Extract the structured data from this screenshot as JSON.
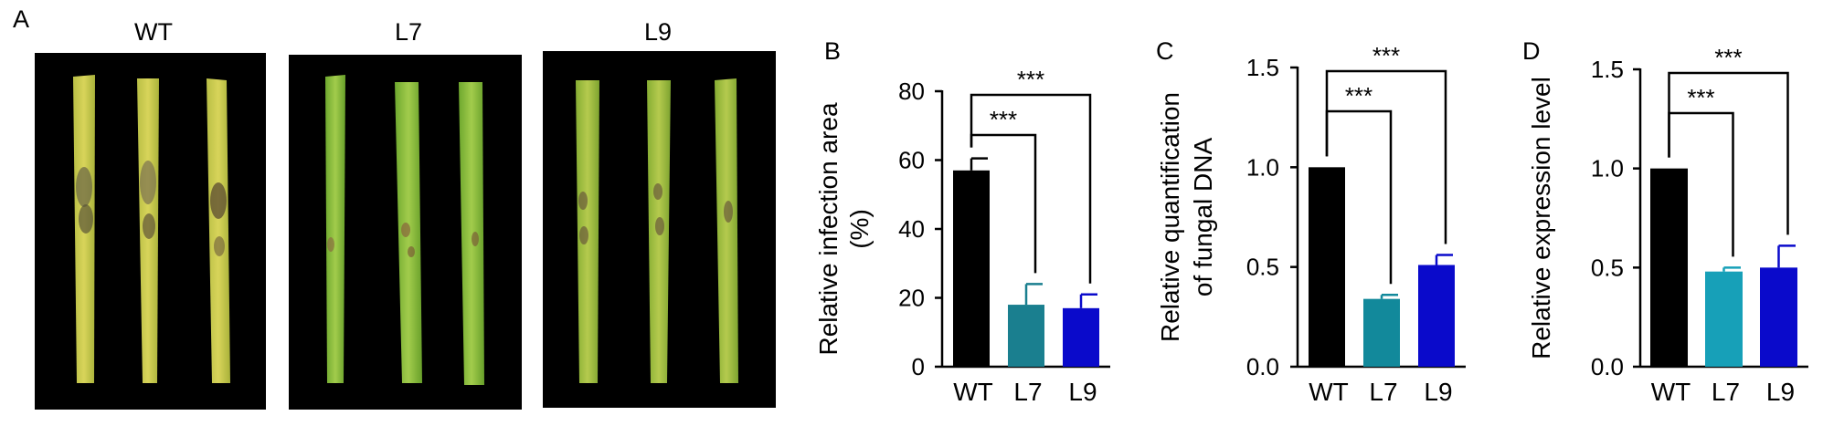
{
  "panel_a": {
    "letter": "A",
    "photos": [
      {
        "label": "WT",
        "lesions": "heavy"
      },
      {
        "label": "L7",
        "lesions": "light"
      },
      {
        "label": "L9",
        "lesions": "moderate"
      }
    ],
    "colors": {
      "background": "#000000",
      "leaf_healthy": "#7fb23a",
      "leaf_wt": "#a8b83c",
      "lesion": "#6b5a3a"
    }
  },
  "chart_data": [
    {
      "type": "bar",
      "panel": "B",
      "categories": [
        "WT",
        "L7",
        "L9"
      ],
      "values": [
        57,
        18,
        17
      ],
      "errors": [
        3.5,
        6,
        4
      ],
      "colors": [
        "#000000",
        "#1a7f8f",
        "#0a0acb"
      ],
      "ylabel_lines": [
        "Relative infection area",
        "(%)"
      ],
      "ylim": [
        0,
        80
      ],
      "yticks": [
        "0",
        "20",
        "40",
        "60",
        "80"
      ],
      "significance": [
        {
          "from": "WT",
          "to": "L7",
          "label": "***"
        },
        {
          "from": "WT",
          "to": "L9",
          "label": "***"
        }
      ]
    },
    {
      "type": "bar",
      "panel": "C",
      "categories": [
        "WT",
        "L7",
        "L9"
      ],
      "values": [
        1.0,
        0.34,
        0.51
      ],
      "errors": [
        0,
        0.02,
        0.05
      ],
      "colors": [
        "#000000",
        "#12899b",
        "#0a0acb"
      ],
      "ylabel_lines": [
        "Relative quantification",
        "of fungal DNA"
      ],
      "ylim": [
        0,
        1.5
      ],
      "yticks": [
        "0.0",
        "0.5",
        "1.0",
        "1.5"
      ],
      "significance": [
        {
          "from": "WT",
          "to": "L7",
          "label": "***"
        },
        {
          "from": "WT",
          "to": "L9",
          "label": "***"
        }
      ]
    },
    {
      "type": "bar",
      "panel": "D",
      "categories": [
        "WT",
        "L7",
        "L9"
      ],
      "values": [
        1.0,
        0.48,
        0.5
      ],
      "errors": [
        0,
        0.02,
        0.11
      ],
      "colors": [
        "#000000",
        "#17a0b8",
        "#0a0acb"
      ],
      "ylabel_lines": [
        "Relative expression level"
      ],
      "ylim": [
        0,
        1.5
      ],
      "yticks": [
        "0.0",
        "0.5",
        "1.0",
        "1.5"
      ],
      "significance": [
        {
          "from": "WT",
          "to": "L7",
          "label": "***"
        },
        {
          "from": "WT",
          "to": "L9",
          "label": "***"
        }
      ]
    }
  ]
}
